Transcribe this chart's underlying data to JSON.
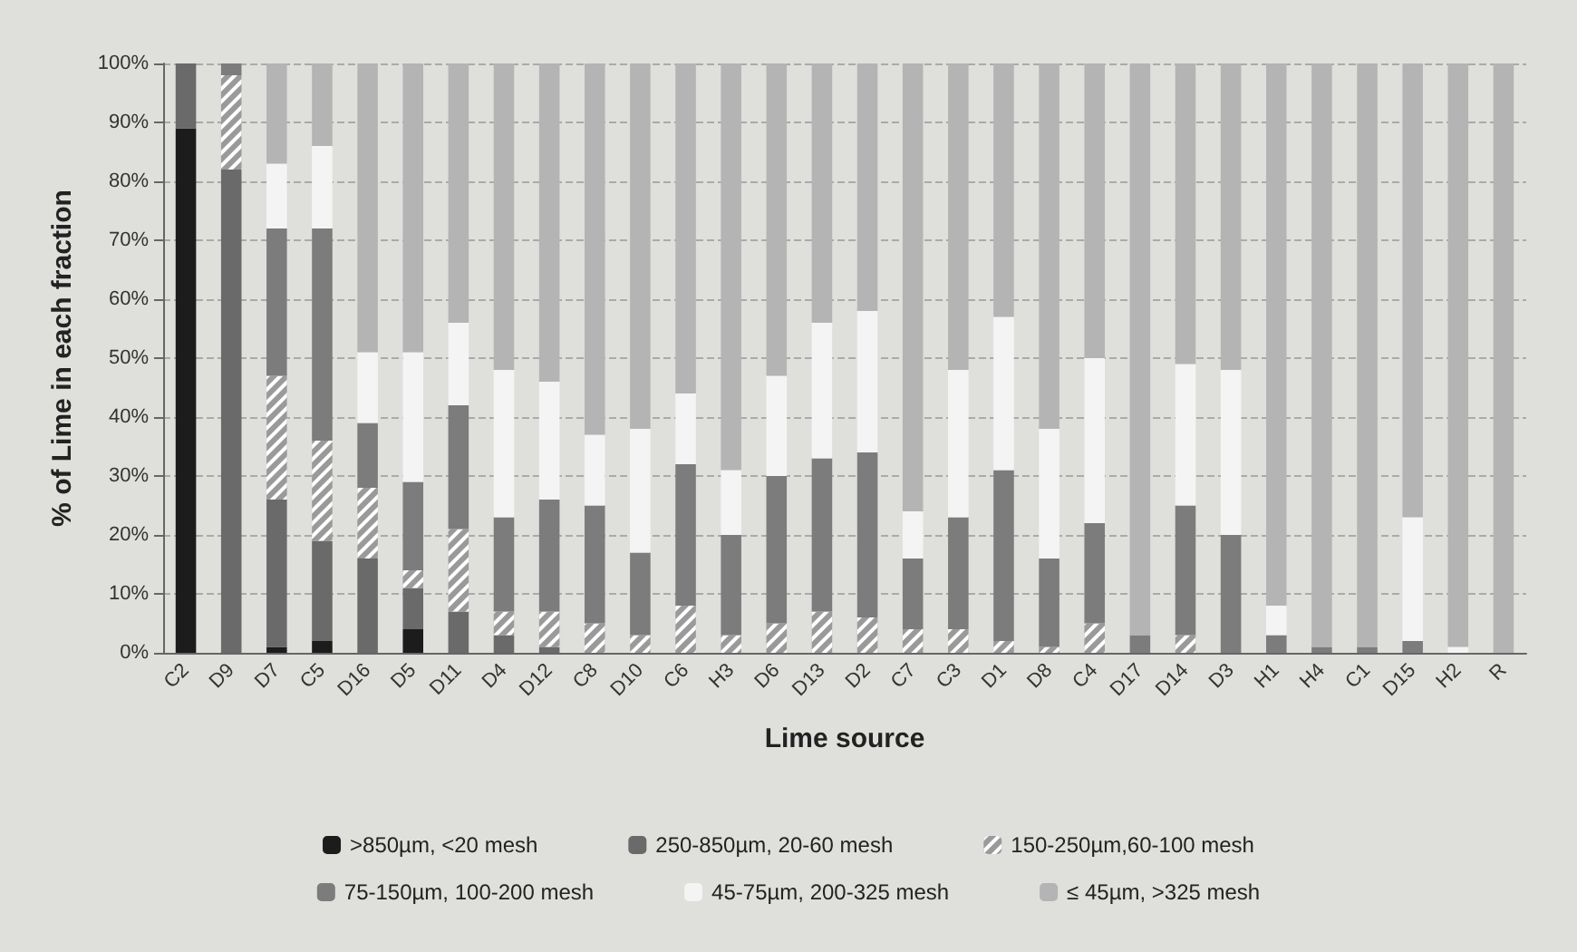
{
  "chart_data": {
    "type": "bar",
    "stacked": true,
    "xlabel": "Lime source",
    "ylabel": "% of Lime in each fraction",
    "categories": [
      "C2",
      "D9",
      "D7",
      "C5",
      "D16",
      "D5",
      "D11",
      "D4",
      "D12",
      "C8",
      "D10",
      "C6",
      "H3",
      "D6",
      "D13",
      "D2",
      "C7",
      "C3",
      "D1",
      "D8",
      "C4",
      "D17",
      "D14",
      "D3",
      "H1",
      "H4",
      "C1",
      "D15",
      "H2",
      "R"
    ],
    "series": [
      {
        "name": ">850µm, <20 mesh",
        "color": "#1c1c1c",
        "values": [
          89,
          0,
          1,
          2,
          0,
          4,
          0,
          0,
          0,
          0,
          0,
          0,
          0,
          0,
          0,
          0,
          0,
          0,
          0,
          0,
          0,
          0,
          0,
          0,
          0,
          0,
          0,
          0,
          0,
          0
        ]
      },
      {
        "name": "250-850µm, 20-60 mesh",
        "color": "#6a6a6a",
        "values": [
          11,
          82,
          25,
          17,
          16,
          7,
          7,
          3,
          1,
          0,
          0,
          0,
          0,
          0,
          0,
          0,
          0,
          0,
          0,
          0,
          0,
          0,
          0,
          0,
          0,
          0,
          0,
          0,
          0,
          0
        ]
      },
      {
        "name": "150-250µm,60-100 mesh",
        "color": "#9a9a9a",
        "values": [
          0,
          16,
          21,
          17,
          12,
          3,
          14,
          4,
          6,
          5,
          3,
          8,
          3,
          5,
          7,
          6,
          4,
          4,
          2,
          1,
          5,
          0,
          3,
          0,
          0,
          0,
          0,
          0,
          0,
          0
        ]
      },
      {
        "name": "75-150µm, 100-200 mesh",
        "color": "#7c7c7c",
        "values": [
          0,
          2,
          25,
          36,
          11,
          15,
          21,
          16,
          19,
          20,
          14,
          24,
          17,
          25,
          26,
          28,
          12,
          19,
          29,
          15,
          17,
          3,
          22,
          20,
          3,
          1,
          1,
          2,
          0,
          0
        ]
      },
      {
        "name": "45-75µm, 200-325 mesh",
        "color": "#f4f4f4",
        "values": [
          0,
          0,
          11,
          14,
          12,
          22,
          14,
          25,
          20,
          12,
          21,
          12,
          11,
          17,
          23,
          24,
          8,
          25,
          26,
          22,
          28,
          0,
          24,
          28,
          5,
          0,
          0,
          21,
          1,
          0
        ]
      },
      {
        "name": "≤ 45µm, >325 mesh",
        "color": "#b4b4b4",
        "values": [
          0,
          0,
          17,
          14,
          49,
          49,
          44,
          52,
          54,
          63,
          62,
          56,
          69,
          53,
          44,
          42,
          76,
          52,
          43,
          62,
          50,
          97,
          51,
          52,
          92,
          99,
          99,
          77,
          99,
          100
        ]
      }
    ],
    "ylim": [
      0,
      100
    ],
    "yticks": [
      {
        "value": 0,
        "label": "0%"
      },
      {
        "value": 10,
        "label": "10%"
      },
      {
        "value": 20,
        "label": "20%"
      },
      {
        "value": 30,
        "label": "30%"
      },
      {
        "value": 40,
        "label": "40%"
      },
      {
        "value": 50,
        "label": "50%"
      },
      {
        "value": 60,
        "label": "60%"
      },
      {
        "value": 70,
        "label": "70%"
      },
      {
        "value": 80,
        "label": "80%"
      },
      {
        "value": 90,
        "label": "90%"
      },
      {
        "value": 100,
        "label": "100%"
      }
    ],
    "grid": "y",
    "legend": "bottom"
  }
}
